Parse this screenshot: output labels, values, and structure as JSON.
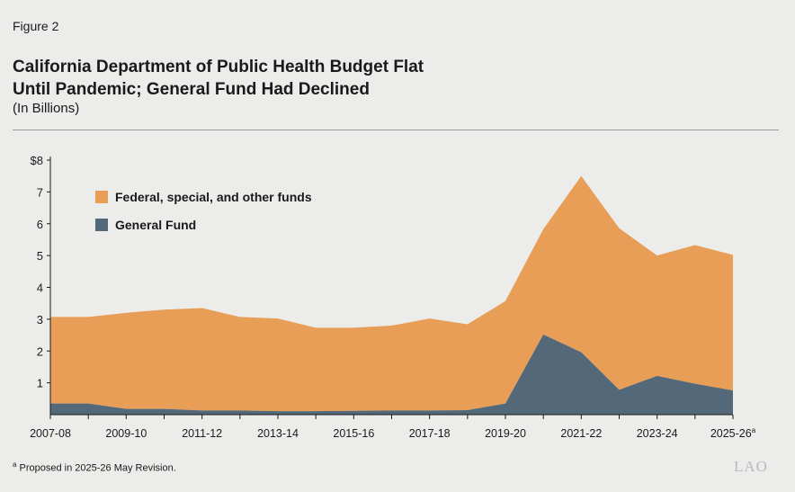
{
  "figure_label": "Figure 2",
  "title_line1": "California Department of Public Health Budget Flat",
  "title_line2": "Until Pandemic; General Fund Had Declined",
  "subtitle": "(In Billions)",
  "footnote_marker": "a",
  "footnote_text": "Proposed in 2025-26 May Revision.",
  "logo_text": "LAO",
  "colors": {
    "other_funds": "#e89e56",
    "general_fund": "#536878"
  },
  "chart_data": {
    "type": "area",
    "stacked": true,
    "title": "California Department of Public Health Budget Flat Until Pandemic; General Fund Had Declined",
    "subtitle": "(In Billions)",
    "ylim": [
      0,
      8
    ],
    "y_ticks": [
      "$8",
      "7",
      "6",
      "5",
      "4",
      "3",
      "2",
      "1"
    ],
    "y_tick_values": [
      8,
      7,
      6,
      5,
      4,
      3,
      2,
      1
    ],
    "x": [
      "2007-08",
      "2008-09",
      "2009-10",
      "2010-11",
      "2011-12",
      "2012-13",
      "2013-14",
      "2014-15",
      "2015-16",
      "2016-17",
      "2017-18",
      "2018-19",
      "2019-20",
      "2020-21",
      "2021-22",
      "2022-23",
      "2023-24",
      "2024-25",
      "2025-26"
    ],
    "x_tick_labels": [
      "2007-08",
      "2009-10",
      "2011-12",
      "2013-14",
      "2015-16",
      "2017-18",
      "2019-20",
      "2021-22",
      "2023-24",
      "2025-26"
    ],
    "x_tick_note": "a",
    "legend_position": "top-left",
    "series": [
      {
        "name": "General Fund",
        "color": "#536878",
        "values": [
          0.35,
          0.35,
          0.18,
          0.18,
          0.13,
          0.13,
          0.11,
          0.11,
          0.12,
          0.13,
          0.13,
          0.14,
          0.35,
          2.52,
          1.96,
          0.78,
          1.22,
          0.97,
          0.76
        ]
      },
      {
        "name": "Federal, special, and other funds",
        "color": "#e89e56",
        "values": [
          2.72,
          2.72,
          3.02,
          3.12,
          3.22,
          2.94,
          2.91,
          2.62,
          2.61,
          2.67,
          2.89,
          2.7,
          3.22,
          3.31,
          5.54,
          5.08,
          3.78,
          4.36,
          4.26
        ]
      }
    ],
    "totals": [
      3.07,
      3.07,
      3.2,
      3.3,
      3.35,
      3.07,
      3.02,
      2.73,
      2.73,
      2.8,
      3.02,
      2.84,
      3.57,
      5.83,
      7.5,
      5.86,
      5.0,
      5.33,
      5.02
    ]
  }
}
